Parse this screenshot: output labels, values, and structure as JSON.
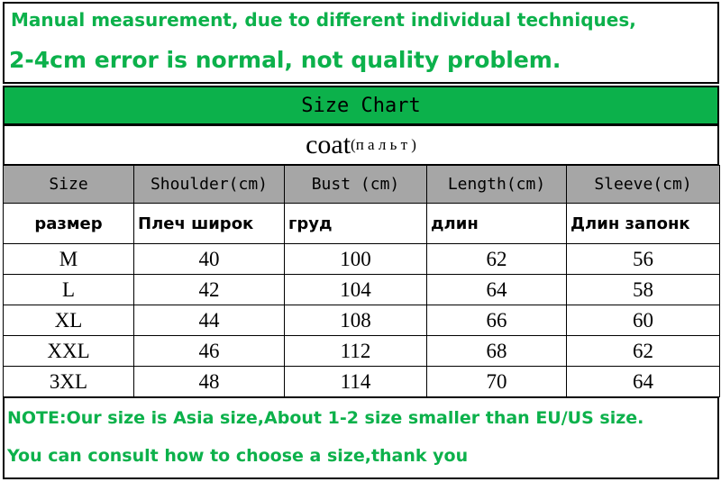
{
  "notice": {
    "line1": "Manual measurement, due to different individual techniques,",
    "line2": "2-4cm error is normal, not quality problem."
  },
  "title": "Size Chart",
  "product": {
    "name": "coat",
    "translation": "(п а л ь т )"
  },
  "table": {
    "headers": [
      "Size",
      "Shoulder(cm)",
      "Bust (cm)",
      "Length(cm)",
      "Sleeve(cm)"
    ],
    "headers_ru": [
      "размер",
      "Плеч широк",
      "груд",
      "длин",
      "Длин запонк"
    ],
    "rows": [
      [
        "M",
        40,
        100,
        62,
        56
      ],
      [
        "L",
        42,
        104,
        64,
        58
      ],
      [
        "XL",
        44,
        108,
        66,
        60
      ],
      [
        "XXL",
        46,
        112,
        68,
        62
      ],
      [
        "3XL",
        48,
        114,
        70,
        64
      ]
    ]
  },
  "notes": [
    "NOTE:Our size is Asia size,About 1-2 size smaller than EU/US size.",
    "You can consult how to choose a size,thank you"
  ]
}
